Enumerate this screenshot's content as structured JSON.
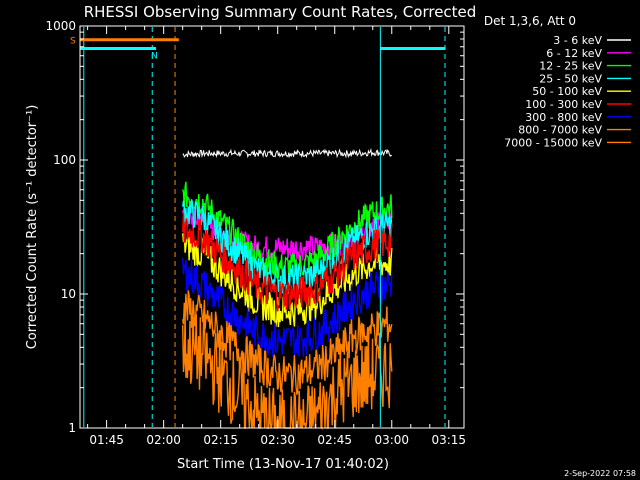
{
  "chart_data": {
    "type": "line",
    "title": "RHESSI Observing Summary Count Rates, Corrected",
    "xlabel": "Start Time (13-Nov-17 01:40:02)",
    "ylabel": "Corrected Count Rate (s⁻¹ detector⁻¹)",
    "yscale": "log",
    "ylim": [
      1,
      1000
    ],
    "xlim": [
      "01:38",
      "03:19"
    ],
    "x_ticks": [
      "01:45",
      "02:00",
      "02:15",
      "02:30",
      "02:45",
      "03:00",
      "03:15"
    ],
    "y_ticks": [
      "1",
      "10",
      "100",
      "1000"
    ],
    "legend_header": "Det 1,3,6, Att 0",
    "legend_position": "right",
    "timestamp": "2-Sep-2022 07:58",
    "flags": [
      {
        "label": "S",
        "color": "#ff8000",
        "value": 790,
        "x_start": "01:38",
        "x_end": "02:04"
      },
      {
        "label": "N",
        "color": "#00ffff",
        "value": 680,
        "x_start": "01:38",
        "x_end": "01:58"
      },
      {
        "label": "",
        "color": "#00ffff",
        "value": 680,
        "x_start": "02:57",
        "x_end": "03:14"
      }
    ],
    "markers": [
      {
        "time": "01:39",
        "color": "#00ffff",
        "style": "solid"
      },
      {
        "time": "01:57",
        "color": "#00ffff",
        "style": "dashed"
      },
      {
        "time": "02:03",
        "color": "#ff8000",
        "style": "dashed"
      },
      {
        "time": "02:57",
        "color": "#00ffff",
        "style": "solid"
      },
      {
        "time": "03:14",
        "color": "#00ffff",
        "style": "dashed"
      }
    ],
    "x": [
      "02:05",
      "02:10",
      "02:15",
      "02:20",
      "02:25",
      "02:30",
      "02:35",
      "02:40",
      "02:45",
      "02:50",
      "02:55",
      "03:00"
    ],
    "series": [
      {
        "name": "3 - 6 keV",
        "color": "#ffffff",
        "values": [
          110,
          112,
          112,
          112,
          112,
          112,
          112,
          112,
          112,
          112,
          114,
          112
        ]
      },
      {
        "name": "6 - 12 keV",
        "color": "#ff00ff",
        "values": [
          38,
          35,
          28,
          24,
          22,
          22,
          22,
          22,
          23,
          27,
          32,
          34
        ]
      },
      {
        "name": "12 - 25 keV",
        "color": "#00ff00",
        "values": [
          55,
          50,
          35,
          25,
          19,
          16,
          16,
          18,
          24,
          32,
          40,
          45
        ]
      },
      {
        "name": "25 - 50 keV",
        "color": "#00ffff",
        "values": [
          42,
          38,
          27,
          20,
          15,
          13,
          13,
          14,
          19,
          25,
          30,
          33
        ]
      },
      {
        "name": "50 - 100 keV",
        "color": "#ffff00",
        "values": [
          24,
          20,
          15,
          11,
          8.5,
          7.5,
          7.5,
          8.5,
          11,
          14,
          17,
          17
        ]
      },
      {
        "name": "100 - 300 keV",
        "color": "#ff0000",
        "values": [
          30,
          27,
          20,
          15,
          11,
          10,
          10,
          11,
          14,
          19,
          23,
          25
        ]
      },
      {
        "name": "300 - 800 keV",
        "color": "#0000ff",
        "values": [
          15,
          12,
          8.5,
          6.5,
          5,
          4.5,
          4.5,
          5,
          6.5,
          9,
          11,
          12
        ]
      },
      {
        "name": "800 - 7000 keV",
        "color": "#ff8000",
        "values": [
          8,
          7,
          5,
          3.8,
          3,
          2.5,
          2.5,
          2.8,
          3.5,
          4.8,
          5.5,
          6
        ]
      },
      {
        "name": "7000 - 15000 keV",
        "color": "#ff8000",
        "values": [
          4,
          3.5,
          2.5,
          1.8,
          1.2,
          1,
          1,
          1.2,
          1.8,
          2.2,
          2.5,
          2.8
        ]
      }
    ]
  }
}
